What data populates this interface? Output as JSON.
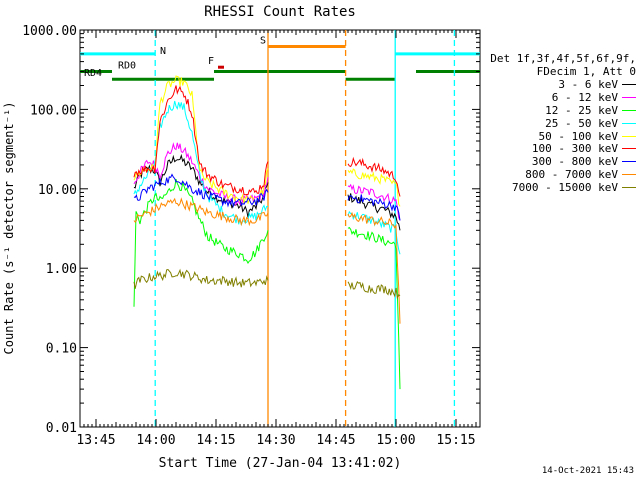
{
  "chart_data": {
    "type": "line",
    "title": "RHESSI Count Rates",
    "xlabel": "Start Time (27-Jan-04 13:41:02)",
    "ylabel": "Count Rate (s⁻¹ detector segment⁻¹)",
    "yscale": "log",
    "ylim": [
      0.01,
      1000
    ],
    "xlim_minutes": [
      0,
      100
    ],
    "ytick_values": [
      0.01,
      0.1,
      1,
      10,
      100,
      1000
    ],
    "ytick_labels": [
      "0.01",
      "0.10",
      "1.00",
      "10.00",
      "100.00",
      "1000.00"
    ],
    "xtick_minutes": [
      4,
      19,
      34,
      49,
      64,
      79,
      94
    ],
    "xtick_labels": [
      "13:45",
      "14:00",
      "14:15",
      "14:30",
      "14:45",
      "15:00",
      "15:15"
    ],
    "legend_header": [
      "Det 1f,3f,4f,5f,6f,9f,",
      "FDecim 1, Att 0"
    ],
    "series": [
      {
        "name": "3 - 6 keV",
        "color": "#000000",
        "segments": [
          [
            [
              13.5,
              10
            ],
            [
              15,
              15
            ],
            [
              17,
              18
            ],
            [
              18.7,
              17
            ],
            [
              20,
              12
            ],
            [
              22,
              20
            ],
            [
              24,
              25
            ],
            [
              26,
              22
            ],
            [
              28,
              18
            ],
            [
              30,
              12
            ],
            [
              32,
              9
            ],
            [
              36,
              7
            ],
            [
              40,
              6
            ],
            [
              42,
              5
            ],
            [
              44,
              6
            ],
            [
              46,
              8
            ],
            [
              47,
              12
            ]
          ],
          [
            [
              67,
              8
            ],
            [
              70,
              7
            ],
            [
              73,
              6
            ],
            [
              76,
              5.5
            ],
            [
              79,
              4.5
            ],
            [
              80,
              3
            ]
          ]
        ]
      },
      {
        "name": "6 - 12 keV",
        "color": "#ff00ff",
        "segments": [
          [
            [
              13.5,
              12
            ],
            [
              15,
              16
            ],
            [
              17,
              22
            ],
            [
              18.7,
              20
            ],
            [
              20,
              15
            ],
            [
              22,
              28
            ],
            [
              24,
              35
            ],
            [
              26,
              30
            ],
            [
              28,
              22
            ],
            [
              30,
              14
            ],
            [
              32,
              10
            ],
            [
              36,
              8
            ],
            [
              40,
              7
            ],
            [
              44,
              7.5
            ],
            [
              46,
              9
            ],
            [
              47,
              14
            ]
          ],
          [
            [
              67,
              10
            ],
            [
              70,
              9.5
            ],
            [
              73,
              9
            ],
            [
              76,
              8
            ],
            [
              79,
              7
            ],
            [
              80,
              4
            ]
          ]
        ]
      },
      {
        "name": "12 - 25 keV",
        "color": "#00ff00",
        "segments": [
          [
            [
              13.5,
              0.3
            ],
            [
              14,
              5
            ],
            [
              15,
              4
            ],
            [
              17,
              6
            ],
            [
              18.7,
              8
            ],
            [
              20,
              7
            ],
            [
              22,
              9
            ],
            [
              24,
              12
            ],
            [
              26,
              10
            ],
            [
              28,
              7
            ],
            [
              30,
              4
            ],
            [
              32,
              2.5
            ],
            [
              36,
              1.8
            ],
            [
              40,
              1.5
            ],
            [
              42,
              1.3
            ],
            [
              44,
              1.6
            ],
            [
              46,
              2.5
            ],
            [
              47,
              3
            ]
          ],
          [
            [
              67,
              3
            ],
            [
              70,
              2.8
            ],
            [
              73,
              2.5
            ],
            [
              76,
              2.2
            ],
            [
              79,
              2
            ],
            [
              80,
              0.03
            ]
          ]
        ]
      },
      {
        "name": "25 - 50 keV",
        "color": "#00ffff",
        "segments": [
          [
            [
              13.5,
              8
            ],
            [
              15,
              11
            ],
            [
              17,
              15
            ],
            [
              18.7,
              20
            ],
            [
              20,
              60
            ],
            [
              22,
              100
            ],
            [
              24,
              120
            ],
            [
              26,
              105
            ],
            [
              28,
              50
            ],
            [
              30,
              14
            ],
            [
              32,
              8
            ],
            [
              36,
              5
            ],
            [
              40,
              4
            ],
            [
              44,
              4.5
            ],
            [
              46,
              5.5
            ],
            [
              47,
              6
            ]
          ],
          [
            [
              67,
              5
            ],
            [
              70,
              4.5
            ],
            [
              73,
              4
            ],
            [
              76,
              3.5
            ],
            [
              79,
              3
            ],
            [
              80,
              1.5
            ]
          ]
        ]
      },
      {
        "name": "50 - 100 keV",
        "color": "#ffff00",
        "segments": [
          [
            [
              13.5,
              14
            ],
            [
              15,
              16
            ],
            [
              17,
              18
            ],
            [
              18.7,
              18
            ],
            [
              20,
              120
            ],
            [
              22,
              200
            ],
            [
              24,
              230
            ],
            [
              26,
              220
            ],
            [
              28,
              150
            ],
            [
              30,
              16
            ],
            [
              32,
              12
            ],
            [
              36,
              9
            ],
            [
              40,
              7.5
            ],
            [
              44,
              7
            ],
            [
              46,
              10
            ],
            [
              47,
              18
            ]
          ],
          [
            [
              67,
              16
            ],
            [
              70,
              15
            ],
            [
              73,
              14
            ],
            [
              76,
              13
            ],
            [
              79,
              11
            ],
            [
              80,
              6
            ]
          ]
        ]
      },
      {
        "name": "100 - 300 keV",
        "color": "#ff0000",
        "segments": [
          [
            [
              13.5,
              16
            ],
            [
              15,
              17
            ],
            [
              17,
              18
            ],
            [
              18.7,
              18
            ],
            [
              20,
              70
            ],
            [
              22,
              130
            ],
            [
              24,
              180
            ],
            [
              26,
              160
            ],
            [
              28,
              90
            ],
            [
              30,
              20
            ],
            [
              32,
              15
            ],
            [
              36,
              11
            ],
            [
              40,
              10
            ],
            [
              44,
              9
            ],
            [
              46,
              12
            ],
            [
              47,
              22
            ]
          ],
          [
            [
              67,
              22
            ],
            [
              70,
              21
            ],
            [
              73,
              19
            ],
            [
              76,
              17
            ],
            [
              79,
              14
            ],
            [
              80,
              8
            ]
          ]
        ]
      },
      {
        "name": "300 - 800 keV",
        "color": "#0000ff",
        "segments": [
          [
            [
              13.5,
              7
            ],
            [
              15,
              8
            ],
            [
              17,
              10
            ],
            [
              18.7,
              11
            ],
            [
              20,
              12
            ],
            [
              22,
              13
            ],
            [
              24,
              14
            ],
            [
              26,
              12
            ],
            [
              28,
              10
            ],
            [
              30,
              9
            ],
            [
              32,
              8
            ],
            [
              36,
              7
            ],
            [
              40,
              6.5
            ],
            [
              44,
              7
            ],
            [
              46,
              8
            ],
            [
              47,
              9
            ]
          ],
          [
            [
              67,
              8
            ],
            [
              70,
              7.5
            ],
            [
              73,
              7
            ],
            [
              76,
              6.5
            ],
            [
              79,
              6
            ],
            [
              80,
              4
            ]
          ]
        ]
      },
      {
        "name": "800 - 7000 keV",
        "color": "#ff8800",
        "segments": [
          [
            [
              13.5,
              4
            ],
            [
              15,
              4.5
            ],
            [
              17,
              5
            ],
            [
              18.7,
              5.5
            ],
            [
              20,
              6
            ],
            [
              22,
              6.5
            ],
            [
              24,
              7
            ],
            [
              26,
              6.5
            ],
            [
              28,
              6
            ],
            [
              30,
              5.5
            ],
            [
              32,
              5
            ],
            [
              36,
              4.5
            ],
            [
              40,
              4
            ],
            [
              44,
              4
            ],
            [
              46,
              4.5
            ],
            [
              47,
              5
            ]
          ],
          [
            [
              67,
              4.5
            ],
            [
              70,
              4.3
            ],
            [
              73,
              4
            ],
            [
              76,
              3.8
            ],
            [
              79,
              3.5
            ],
            [
              80,
              0.2
            ]
          ]
        ]
      },
      {
        "name": "7000 - 15000 keV",
        "color": "#808000",
        "segments": [
          [
            [
              13.5,
              0.6
            ],
            [
              15,
              0.7
            ],
            [
              17,
              0.75
            ],
            [
              18.7,
              0.8
            ],
            [
              20,
              0.8
            ],
            [
              22,
              0.85
            ],
            [
              24,
              0.9
            ],
            [
              26,
              0.85
            ],
            [
              28,
              0.8
            ],
            [
              30,
              0.75
            ],
            [
              32,
              0.7
            ],
            [
              36,
              0.7
            ],
            [
              40,
              0.65
            ],
            [
              44,
              0.65
            ],
            [
              46,
              0.7
            ],
            [
              47,
              0.7
            ]
          ],
          [
            [
              67,
              0.6
            ],
            [
              70,
              0.6
            ],
            [
              73,
              0.55
            ],
            [
              76,
              0.55
            ],
            [
              79,
              0.5
            ],
            [
              80,
              0.45
            ]
          ]
        ]
      }
    ],
    "vlines": [
      {
        "x": 18.8,
        "color": "#00ffff",
        "style": "dashed"
      },
      {
        "x": 47.0,
        "color": "#ff8800",
        "style": "solid"
      },
      {
        "x": 66.4,
        "color": "#ff8800",
        "style": "dashed"
      },
      {
        "x": 78.8,
        "color": "#00ffff",
        "style": "solid"
      },
      {
        "x": 93.6,
        "color": "#00ffff",
        "style": "dashed"
      }
    ],
    "flag_bars": [
      {
        "label": "",
        "color": "#00ffff",
        "x1": 0,
        "x2": 18.8,
        "y": 500
      },
      {
        "label": "N",
        "color": "#00ffff",
        "x1": null,
        "x2": null,
        "y": 500,
        "label_x": 20
      },
      {
        "label": "",
        "color": "#00ffff",
        "x1": 78.8,
        "x2": 100,
        "y": 500
      },
      {
        "label": "S",
        "color": "#ff8800",
        "x1": 47.0,
        "x2": 66.4,
        "y": 620,
        "label_x": 45
      },
      {
        "label": "F",
        "color": "#cc0000",
        "x1": 34.5,
        "x2": 36.0,
        "y": 340,
        "label_x": 32
      },
      {
        "label": "RD0",
        "color": "#008000",
        "x1": 0,
        "x2": 8,
        "y": 300,
        "label_x": 9.5
      },
      {
        "label": "",
        "color": "#008000",
        "x1": 33.5,
        "x2": 66.4,
        "y": 300
      },
      {
        "label": "",
        "color": "#008000",
        "x1": 84,
        "x2": 100,
        "y": 300
      },
      {
        "label": "RD4",
        "color": "#008000",
        "x1": 8,
        "x2": 33.5,
        "y": 240,
        "label_x": 1
      },
      {
        "label": "",
        "color": "#008000",
        "x1": 66.4,
        "x2": 78.8,
        "y": 240
      }
    ]
  },
  "footer": {
    "timestamp": "14-Oct-2021 15:43"
  }
}
